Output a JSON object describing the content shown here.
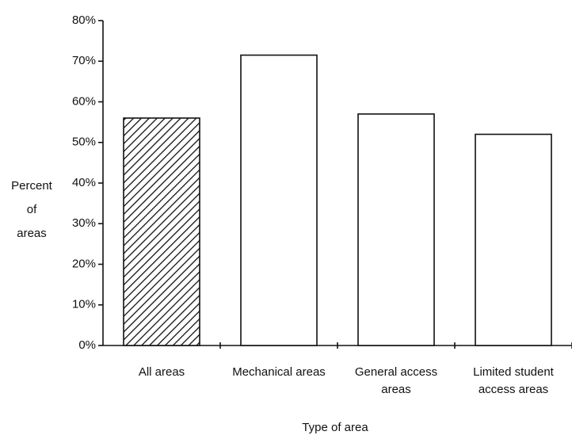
{
  "chart_data": {
    "type": "bar",
    "y_label": [
      "Percent",
      "of",
      "areas"
    ],
    "x_label": "Type of area",
    "categories": [
      [
        "All areas"
      ],
      [
        "Mechanical areas"
      ],
      [
        "General access",
        "areas"
      ],
      [
        "Limited student",
        "access areas"
      ]
    ],
    "values": [
      56,
      71.5,
      57,
      52
    ],
    "bar_styles": [
      "hatch",
      "open",
      "open",
      "open"
    ],
    "color": "#111111",
    "ylim": [
      0,
      80
    ],
    "yticks": [
      {
        "value": 0,
        "label": "0%"
      },
      {
        "value": 10,
        "label": "10%"
      },
      {
        "value": 20,
        "label": "20%"
      },
      {
        "value": 30,
        "label": "30%"
      },
      {
        "value": 40,
        "label": "40%"
      },
      {
        "value": 50,
        "label": "50%"
      },
      {
        "value": 60,
        "label": "60%"
      },
      {
        "value": 70,
        "label": "70%"
      },
      {
        "value": 80,
        "label": "80%"
      }
    ],
    "grid": false
  }
}
